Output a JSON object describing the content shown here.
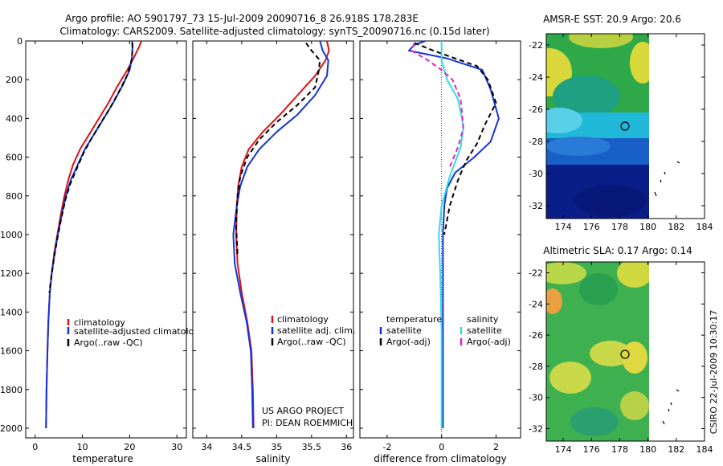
{
  "figure": {
    "title_line1": "Argo profile: AO 5901797_73 15-Jul-2009 20090716_8 26.918S 178.283E",
    "title_line2": "Climatology: CARS2009. Satellite-adjusted climatology: synTS_20090716.nc (0.15d later)",
    "credit": "CSIRO 22-Jul-2009 10:30:17",
    "project_line1": "US ARGO PROJECT",
    "project_line2": "PI: DEAN ROEMMICH"
  },
  "colors": {
    "climatology": "#dd1111",
    "satellite": "#1133dd",
    "argo": "#000000",
    "temp_sat": "#1133dd",
    "sal_sat": "#33dddd",
    "sal_argo": "#dd22cc"
  },
  "chart_data": [
    {
      "type": "line",
      "xlabel": "temperature",
      "ylabel": "",
      "xlim": [
        -2,
        32
      ],
      "ylim": [
        2050,
        0
      ],
      "y_reversed": true,
      "xticks": [
        0,
        10,
        20,
        30
      ],
      "yticks": [
        0,
        200,
        400,
        600,
        800,
        1000,
        1200,
        1400,
        1600,
        1800,
        2000
      ],
      "legend": [
        "climatology",
        "satellite-adjusted climatolog",
        "Argo(..raw -QC)"
      ],
      "series": [
        {
          "name": "climatology",
          "style": "solid",
          "color_key": "climatology",
          "x": [
            22.5,
            22.0,
            21.0,
            19.5,
            17.5,
            15.5,
            13.5,
            11.5,
            9.5,
            8.0,
            7.0,
            6.2,
            5.4,
            4.7,
            4.0,
            3.5,
            3.1,
            2.8,
            2.6,
            2.4,
            2.3
          ],
          "y": [
            0,
            30,
            80,
            150,
            230,
            320,
            400,
            480,
            560,
            640,
            720,
            800,
            900,
            1000,
            1100,
            1200,
            1300,
            1450,
            1600,
            1800,
            2000
          ]
        },
        {
          "name": "satellite-adjusted climatolog",
          "style": "solid",
          "color_key": "satellite",
          "x": [
            20.5,
            20.6,
            20.5,
            20.0,
            18.5,
            16.5,
            14.5,
            12.5,
            10.5,
            9.0,
            7.5,
            6.5,
            5.6,
            4.8,
            4.1,
            3.5,
            3.1,
            2.8,
            2.6,
            2.4,
            2.3
          ],
          "y": [
            0,
            30,
            80,
            150,
            230,
            320,
            400,
            480,
            560,
            640,
            720,
            800,
            900,
            1000,
            1100,
            1200,
            1300,
            1450,
            1600,
            1800,
            2000
          ]
        },
        {
          "name": "Argo(..raw -QC)",
          "style": "dashed",
          "color_key": "argo",
          "x": [
            20.6,
            20.6,
            20.4,
            19.6,
            18.0,
            16.0,
            14.0,
            12.0,
            10.2,
            8.8,
            7.4,
            6.4,
            5.5,
            4.7,
            4.0,
            3.4,
            3.0
          ],
          "y": [
            10,
            50,
            100,
            170,
            250,
            340,
            420,
            500,
            580,
            660,
            740,
            820,
            920,
            1020,
            1120,
            1220,
            1300
          ]
        }
      ]
    },
    {
      "type": "line",
      "xlabel": "salinity",
      "ylabel": "",
      "xlim": [
        33.8,
        36.1
      ],
      "ylim": [
        2050,
        0
      ],
      "y_reversed": true,
      "xticks": [
        34,
        34.5,
        35,
        35.5,
        36
      ],
      "legend": [
        "climatology",
        "satellite adj. clim.",
        "Argo(..raw -QC)"
      ],
      "series": [
        {
          "name": "climatology",
          "style": "solid",
          "color_key": "climatology",
          "x": [
            35.72,
            35.75,
            35.7,
            35.55,
            35.3,
            35.05,
            34.8,
            34.6,
            34.5,
            34.45,
            34.43,
            34.42,
            34.44,
            34.5,
            34.58,
            34.64,
            34.66,
            34.67
          ],
          "y": [
            0,
            50,
            100,
            180,
            280,
            380,
            470,
            560,
            650,
            750,
            850,
            1000,
            1150,
            1300,
            1450,
            1600,
            1800,
            2000
          ]
        },
        {
          "name": "satellite adj. clim.",
          "style": "solid",
          "color_key": "satellite",
          "x": [
            35.62,
            35.66,
            35.74,
            35.72,
            35.55,
            35.3,
            35.0,
            34.75,
            34.58,
            34.48,
            34.43,
            34.38,
            34.4,
            34.48,
            34.57,
            34.63,
            34.65,
            34.66
          ],
          "y": [
            0,
            50,
            100,
            180,
            280,
            380,
            470,
            560,
            650,
            750,
            850,
            1000,
            1150,
            1300,
            1450,
            1600,
            1800,
            2000
          ]
        },
        {
          "name": "Argo(..raw -QC)",
          "style": "dashed",
          "color_key": "argo",
          "x": [
            35.42,
            35.5,
            35.62,
            35.6,
            35.55,
            35.3,
            35.0,
            34.75,
            34.58,
            34.48,
            34.44,
            34.42,
            34.44
          ],
          "y": [
            10,
            50,
            100,
            160,
            240,
            330,
            420,
            510,
            600,
            700,
            800,
            950,
            1100
          ]
        }
      ]
    },
    {
      "type": "line",
      "xlabel": "difference from climatology",
      "ylabel": "",
      "xlim": [
        -3,
        2.9
      ],
      "ylim": [
        2050,
        0
      ],
      "y_reversed": true,
      "xticks": [
        -2,
        0,
        2
      ],
      "legend_header": [
        "temperature",
        "salinity"
      ],
      "legend": [
        "satellite",
        "Argo(-adj)",
        "satellite",
        "Argo(-adj)"
      ],
      "series": [
        {
          "name": "temperature satellite",
          "style": "solid",
          "color_key": "temp_sat",
          "x": [
            -0.6,
            -1.0,
            -1.2,
            0.2,
            1.5,
            1.8,
            2.1,
            1.8,
            1.2,
            0.5,
            0.2,
            0.1,
            0.05,
            0.05,
            0.05,
            0.05,
            0.05,
            0.05,
            0.05
          ],
          "y": [
            0,
            20,
            50,
            90,
            150,
            250,
            400,
            520,
            600,
            680,
            760,
            850,
            1000,
            1200,
            1400,
            1600,
            1800,
            1950,
            2000
          ]
        },
        {
          "name": "temperature Argo(-adj)",
          "style": "dashed",
          "color_key": "argo",
          "x": [
            -1.0,
            -0.3,
            0.5,
            1.3,
            1.7,
            2.0,
            1.6,
            1.3,
            0.9,
            0.6,
            0.3,
            0.1
          ],
          "y": [
            10,
            50,
            90,
            130,
            200,
            320,
            430,
            530,
            620,
            720,
            850,
            1000
          ]
        },
        {
          "name": "salinity satellite",
          "style": "solid",
          "color_key": "sal_sat",
          "x": [
            0.0,
            0.0,
            0.2,
            0.6,
            0.75,
            0.8,
            0.7,
            0.3,
            0.0,
            -0.1,
            -0.05,
            0.0,
            0.0
          ],
          "y": [
            0,
            100,
            200,
            300,
            400,
            450,
            550,
            700,
            850,
            1000,
            1200,
            1500,
            2000
          ]
        },
        {
          "name": "salinity Argo(-adj)",
          "style": "dashed",
          "color_key": "sal_argo",
          "x": [
            -1.0,
            -1.1,
            -0.5,
            0.0,
            0.4,
            0.7,
            0.8,
            0.6,
            0.3
          ],
          "y": [
            10,
            50,
            100,
            150,
            200,
            300,
            450,
            550,
            650
          ]
        }
      ]
    },
    {
      "type": "heatmap",
      "title": "AMSR-E SST: 20.9 Argo: 20.6",
      "xlim": [
        172.8,
        184
      ],
      "ylim": [
        -32.8,
        -21.3
      ],
      "xticks": [
        174,
        176,
        178,
        180,
        182,
        184
      ],
      "yticks": [
        -22,
        -24,
        -26,
        -28,
        -30,
        -32
      ],
      "marker": {
        "lon": 178.283,
        "lat": -26.918
      },
      "data_extent_lon": [
        172.8,
        180.4
      ]
    },
    {
      "type": "heatmap",
      "title": "Altimetric SLA: 0.17 Argo: 0.14",
      "xlim": [
        172.8,
        184
      ],
      "ylim": [
        -32.8,
        -21.3
      ],
      "xticks": [
        174,
        176,
        178,
        180,
        182,
        184
      ],
      "yticks": [
        -22,
        -24,
        -26,
        -28,
        -30,
        -32
      ],
      "marker": {
        "lon": 178.283,
        "lat": -26.918
      },
      "data_extent_lon": [
        172.8,
        180.4
      ]
    }
  ]
}
